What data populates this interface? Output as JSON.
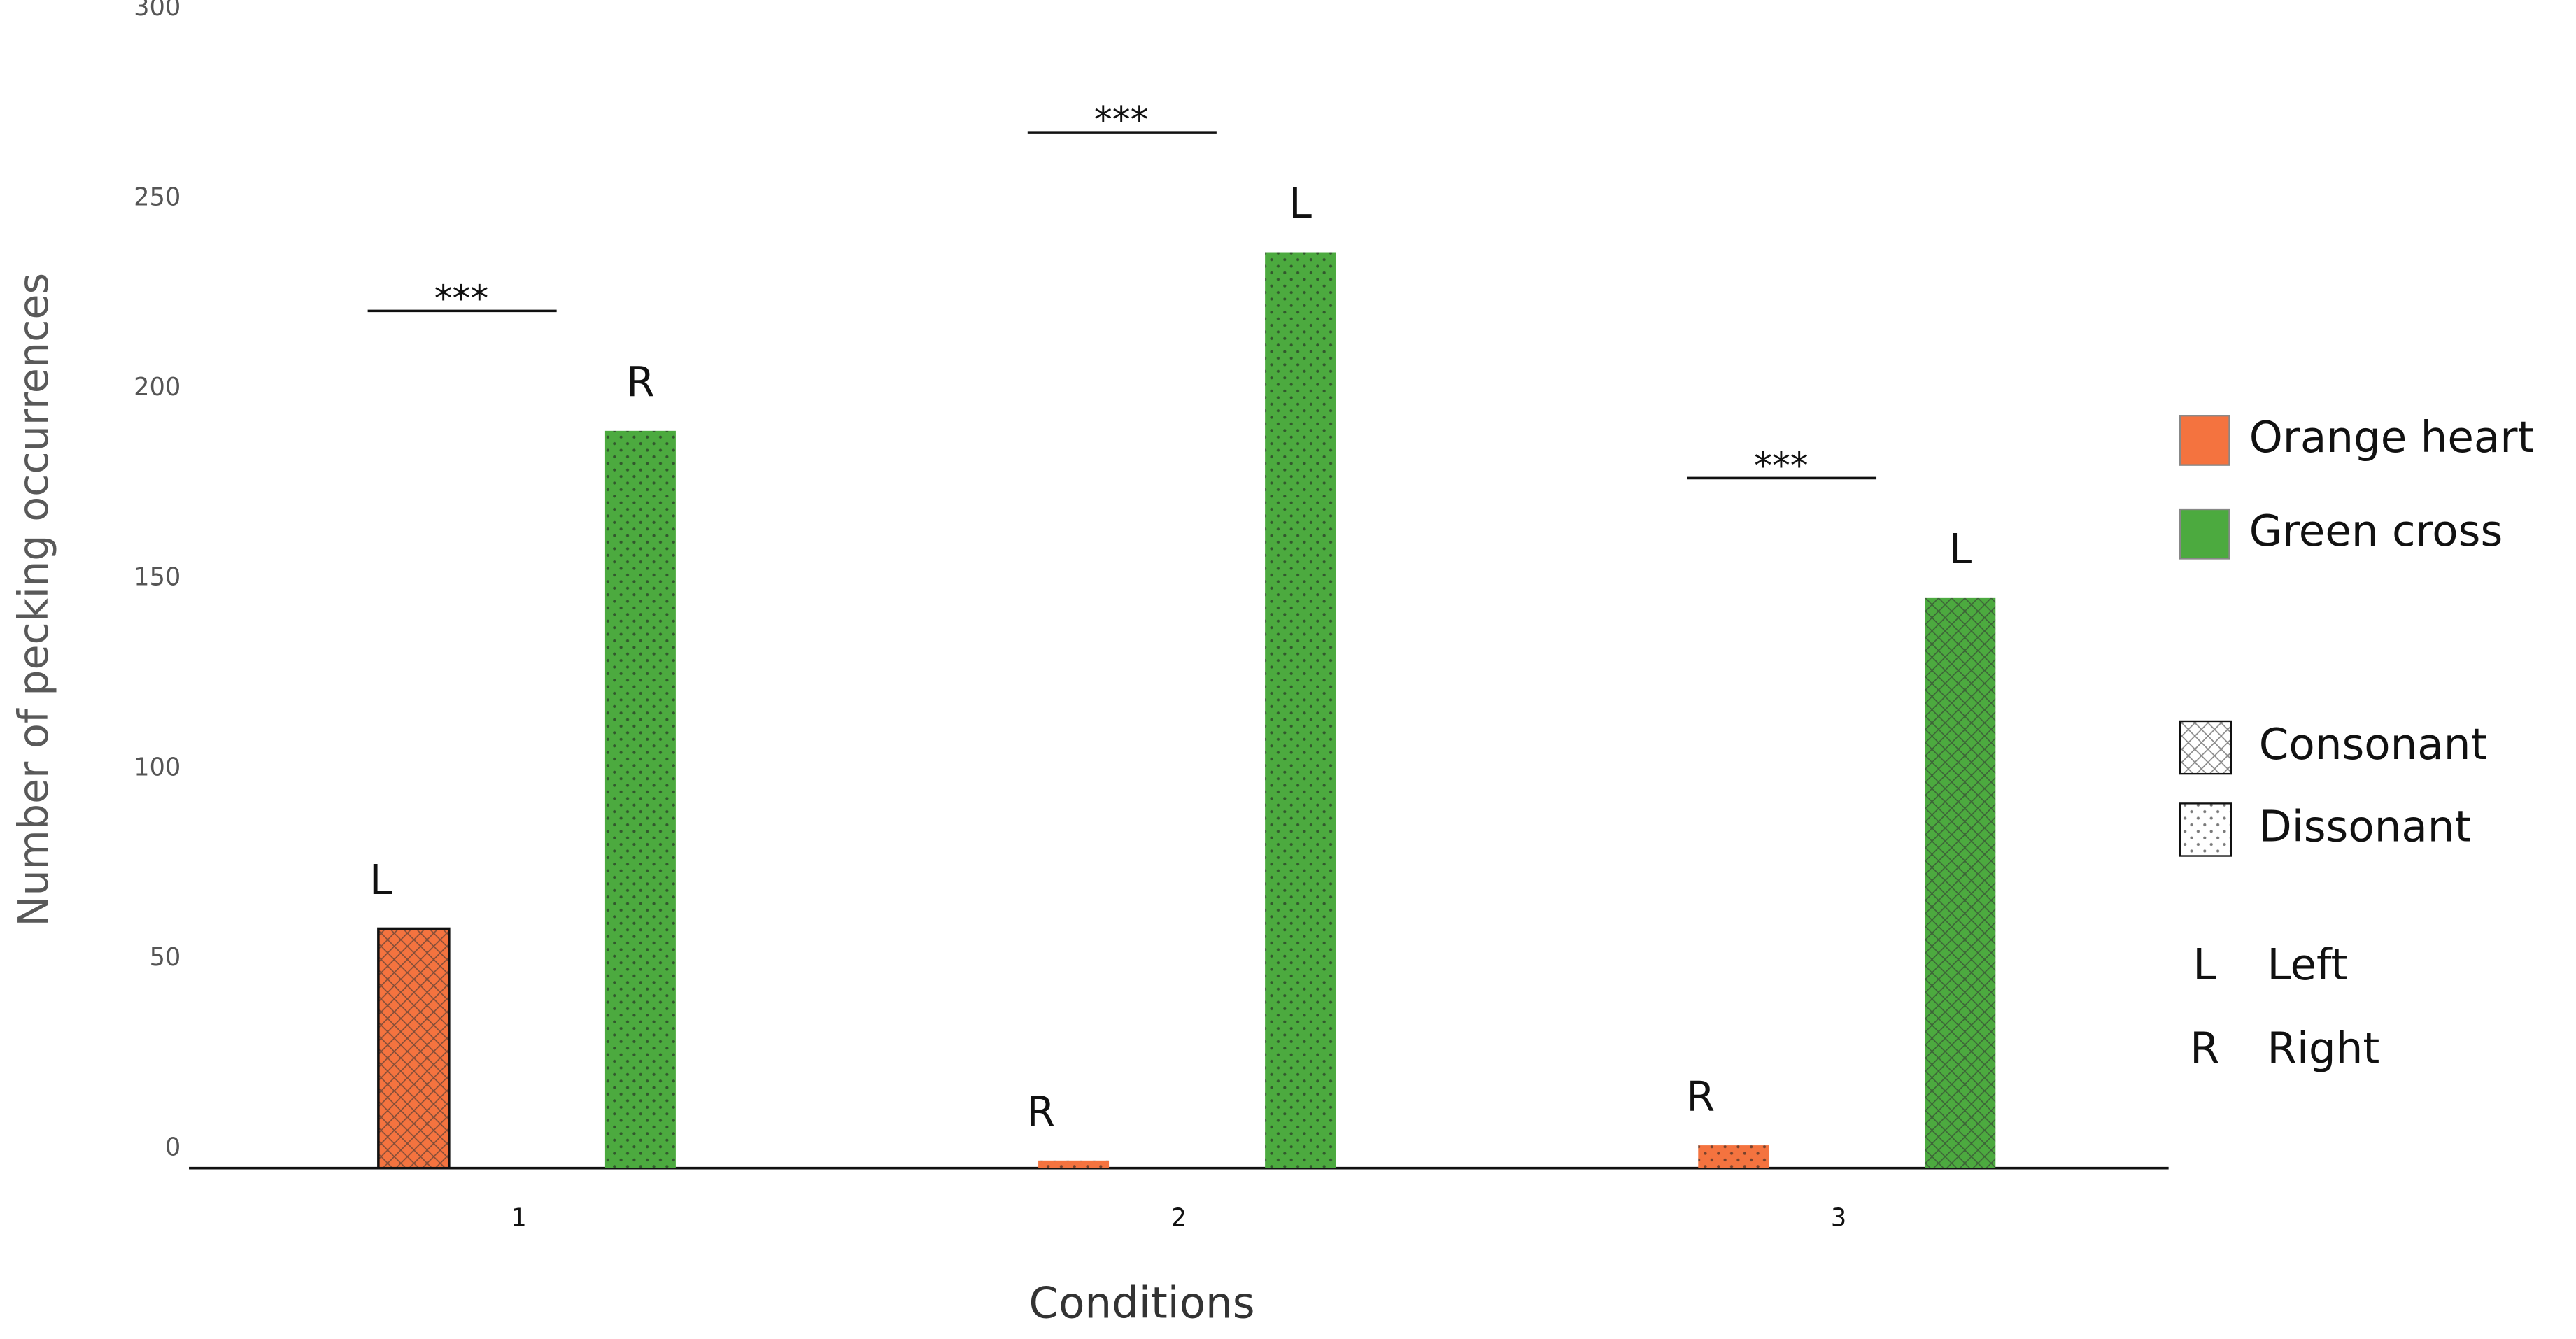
{
  "chart_data": {
    "type": "bar",
    "y_label": "Number of pecking occurrences",
    "x_label": "Conditions",
    "categories": [
      "1",
      "2",
      "3"
    ],
    "series": [
      {
        "name": "Orange heart",
        "color": "#f4733f",
        "values": [
          63,
          2,
          6
        ],
        "hatches": [
          "cross",
          "dot",
          "dot"
        ],
        "side_labels": [
          "L",
          "R",
          "R"
        ]
      },
      {
        "name": "Green cross",
        "color": "#4caa3f",
        "values": [
          194,
          241,
          150
        ],
        "hatches": [
          "dot",
          "dot",
          "cross"
        ],
        "side_labels": [
          "R",
          "L",
          "L"
        ]
      }
    ],
    "annotations": [
      "***",
      "***",
      "***"
    ],
    "ylim": [
      0,
      300
    ],
    "yticks": [
      0,
      50,
      100,
      150,
      200,
      250,
      300
    ],
    "grid": false,
    "pattern_legend": [
      {
        "label": "Consonant",
        "hatch": "cross"
      },
      {
        "label": "Dissonant",
        "hatch": "dot"
      }
    ],
    "side_legend": [
      {
        "key": "L",
        "label": "Left"
      },
      {
        "key": "R",
        "label": "Right"
      }
    ]
  }
}
